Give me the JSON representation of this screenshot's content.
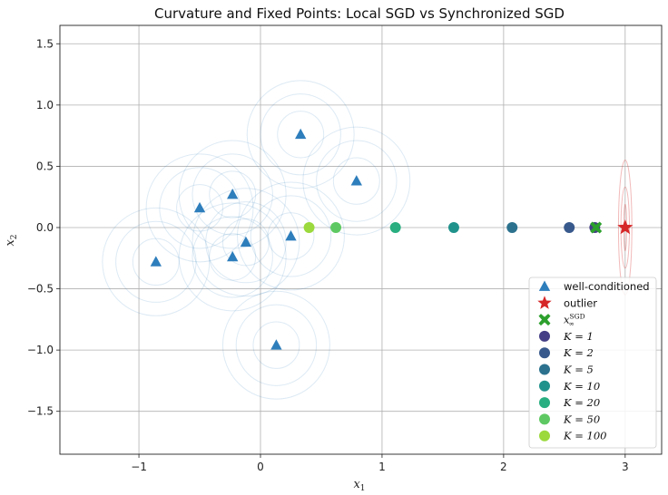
{
  "chart_data": {
    "type": "scatter",
    "title": "Curvature and Fixed Points: Local SGD vs Synchronized SGD",
    "xlabel": "x",
    "xlabel_sub": "1",
    "ylabel": "x",
    "ylabel_sub": "2",
    "xlim": [
      -1.65,
      3.3
    ],
    "ylim": [
      -1.85,
      1.65
    ],
    "xticks": [
      -1,
      0,
      1,
      2,
      3
    ],
    "yticks": [
      -1.5,
      -1.0,
      -0.5,
      0.0,
      0.5,
      1.0,
      1.5
    ],
    "xtick_labels": [
      "−1",
      "0",
      "1",
      "2",
      "3"
    ],
    "ytick_labels": [
      "−1.5",
      "−1.0",
      "−0.5",
      "0.0",
      "0.5",
      "1.0",
      "1.5"
    ],
    "grid": true,
    "legend_position": "lower-right",
    "series": [
      {
        "name": "well-conditioned",
        "marker": "triangle",
        "color": "#2e7ebc",
        "points": [
          {
            "x": 0.33,
            "y": 0.76
          },
          {
            "x": 0.79,
            "y": 0.38
          },
          {
            "x": -0.23,
            "y": 0.27
          },
          {
            "x": -0.5,
            "y": 0.16
          },
          {
            "x": 0.25,
            "y": -0.07
          },
          {
            "x": -0.12,
            "y": -0.12
          },
          {
            "x": -0.23,
            "y": -0.24
          },
          {
            "x": -0.86,
            "y": -0.28
          },
          {
            "x": 0.13,
            "y": -0.96
          }
        ]
      },
      {
        "name": "outlier",
        "marker": "star",
        "color": "#d62728",
        "points": [
          {
            "x": 3.0,
            "y": 0.0
          }
        ]
      },
      {
        "name": "x",
        "name_sub": "∞",
        "name_sup": "SGD",
        "marker": "cross",
        "color": "#2ca02c",
        "points": [
          {
            "x": 2.76,
            "y": 0.0
          }
        ]
      },
      {
        "name": "K = 1",
        "marker": "circle",
        "color": "#433e85",
        "points": [
          {
            "x": 2.75,
            "y": 0.0
          }
        ]
      },
      {
        "name": "K = 2",
        "marker": "circle",
        "color": "#38598c",
        "points": [
          {
            "x": 2.54,
            "y": 0.0
          }
        ]
      },
      {
        "name": "K = 5",
        "marker": "circle",
        "color": "#2c728e",
        "points": [
          {
            "x": 2.07,
            "y": 0.0
          }
        ]
      },
      {
        "name": "K = 10",
        "marker": "circle",
        "color": "#20928c",
        "points": [
          {
            "x": 1.59,
            "y": 0.0
          }
        ]
      },
      {
        "name": "K = 20",
        "marker": "circle",
        "color": "#28ae80",
        "points": [
          {
            "x": 1.11,
            "y": 0.0
          }
        ]
      },
      {
        "name": "K = 50",
        "marker": "circle",
        "color": "#5ec962",
        "points": [
          {
            "x": 0.62,
            "y": 0.0
          }
        ]
      },
      {
        "name": "K = 100",
        "marker": "circle",
        "color": "#9bd93c",
        "points": [
          {
            "x": 0.4,
            "y": 0.0
          }
        ]
      }
    ],
    "contours": {
      "well_conditioned_color": "#2e7ebc",
      "outlier_color": "#d62728",
      "well_conditioned_radii": [
        0.19,
        0.33,
        0.44
      ],
      "outlier_radii_x": [
        0.012,
        0.035,
        0.055
      ],
      "outlier_radii_y": [
        0.19,
        0.33,
        0.55
      ]
    }
  }
}
